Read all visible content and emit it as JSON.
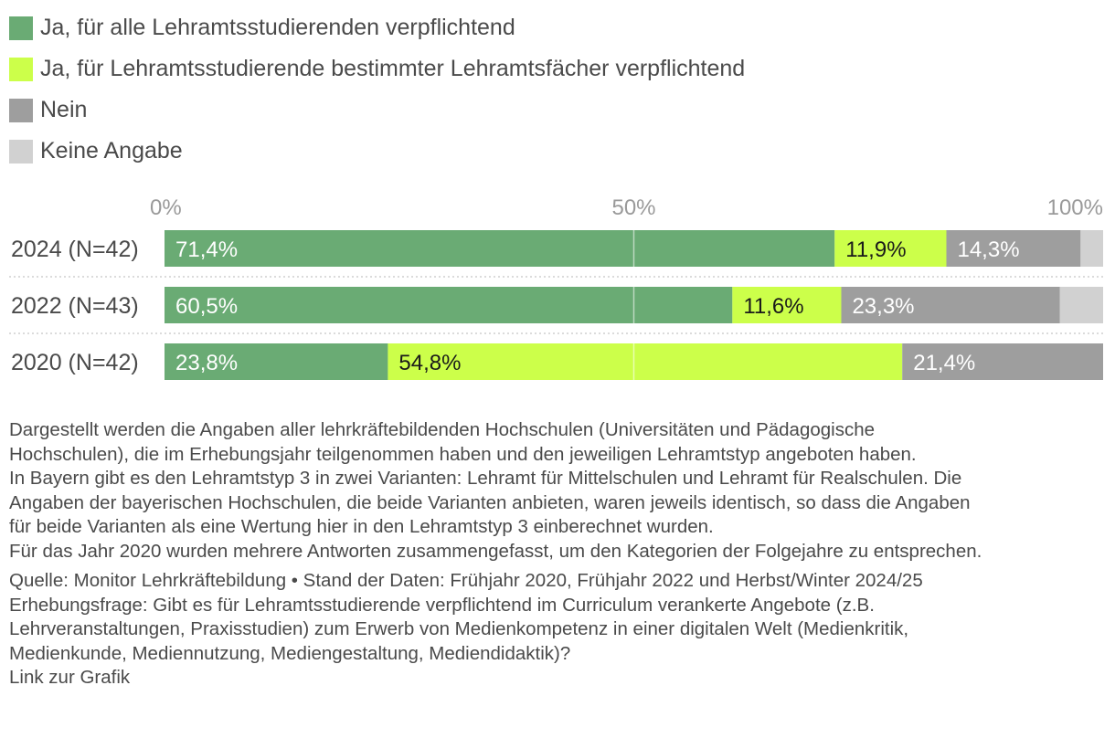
{
  "colors": {
    "series": [
      "#6aab74",
      "#ccff4a",
      "#9e9e9e",
      "#d1d1d1"
    ],
    "label_light": "#ffffff",
    "label_dark": "#1a1a1a",
    "axis_text": "#9a9a9a",
    "row_label": "#4a4a4a"
  },
  "legend": [
    {
      "label": "Ja, für alle Lehramtsstudierenden verpflichtend",
      "color": "#6aab74"
    },
    {
      "label": "Ja, für Lehramtsstudierende bestimmter Lehramtsfächer verpflichtend",
      "color": "#ccff4a"
    },
    {
      "label": "Nein",
      "color": "#9e9e9e"
    },
    {
      "label": "Keine Angabe",
      "color": "#d1d1d1"
    }
  ],
  "chart_data": {
    "type": "bar",
    "orientation": "horizontal",
    "stacked": true,
    "xlim": [
      0,
      100
    ],
    "x_ticks": [
      {
        "value": 0,
        "label": "0%"
      },
      {
        "value": 50,
        "label": "50%"
      },
      {
        "value": 100,
        "label": "100%"
      }
    ],
    "grid": true,
    "categories": [
      "2024 (N=42)",
      "2022 (N=43)",
      "2020 (N=42)"
    ],
    "series": [
      {
        "name": "Ja, für alle Lehramtsstudierenden verpflichtend",
        "values": [
          71.4,
          60.5,
          23.8
        ],
        "labels": [
          "71,4%",
          "60,5%",
          "23,8%"
        ]
      },
      {
        "name": "Ja, für Lehramtsstudierende bestimmter Lehramtsfächer verpflichtend",
        "values": [
          11.9,
          11.6,
          54.8
        ],
        "labels": [
          "11,9%",
          "11,6%",
          "54,8%"
        ]
      },
      {
        "name": "Nein",
        "values": [
          14.3,
          23.3,
          21.4
        ],
        "labels": [
          "14,3%",
          "23,3%",
          "21,4%"
        ]
      },
      {
        "name": "Keine Angabe",
        "values": [
          2.4,
          4.6,
          0
        ],
        "labels": [
          "",
          "",
          ""
        ]
      }
    ]
  },
  "notes": [
    "Dargestellt werden die Angaben aller lehrkräftebildenden Hochschulen (Universitäten und Pädagogische",
    "Hochschulen), die im Erhebungsjahr teilgenommen haben und den jeweiligen Lehramtstyp angeboten haben.",
    "In Bayern gibt es den Lehramtstyp 3 in zwei Varianten: Lehramt für Mittelschulen und Lehramt für Realschulen. Die",
    "Angaben der bayerischen Hochschulen, die beide Varianten anbieten, waren jeweils identisch, so dass die Angaben",
    "für beide Varianten als eine Wertung hier in den Lehramtstyp 3 einberechnet wurden.",
    "Für das Jahr 2020 wurden mehrere Antworten zusammengefasst, um den Kategorien der Folgejahre zu entsprechen."
  ],
  "source": [
    "Quelle: Monitor Lehrkräftebildung • Stand der Daten: Frühjahr 2020, Frühjahr 2022 und Herbst/Winter 2024/25",
    "Erhebungsfrage: Gibt es für Lehramtsstudierende verpflichtend im Curriculum verankerte Angebote (z.B.",
    "Lehrveranstaltungen, Praxisstudien) zum Erwerb von Medienkompetenz in einer digitalen Welt (Medienkritik,",
    "Medienkunde, Mediennutzung, Mediengestaltung, Mediendidaktik)?"
  ],
  "link_text": "Link zur Grafik"
}
